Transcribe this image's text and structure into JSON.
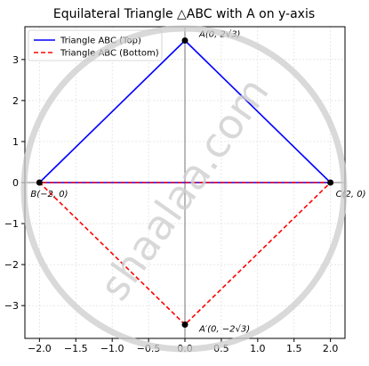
{
  "chart_data": {
    "type": "line",
    "title": "Equilateral Triangle △ABC with A on y-axis",
    "xlabel": "",
    "ylabel": "",
    "xlim": [
      -2.2,
      2.2
    ],
    "ylim": [
      -3.8,
      3.8
    ],
    "grid": true,
    "legend_position": "top-left",
    "x_ticks": [
      -2.0,
      -1.5,
      -1.0,
      -0.5,
      0.0,
      0.5,
      1.0,
      1.5,
      2.0
    ],
    "x_tick_labels": [
      "−2.0",
      "−1.5",
      "−1.0",
      "−0.5",
      "0.0",
      "0.5",
      "1.0",
      "1.5",
      "2.0"
    ],
    "y_ticks": [
      -3,
      -2,
      -1,
      0,
      1,
      2,
      3
    ],
    "y_tick_labels": [
      "−3",
      "−2",
      "−1",
      "0",
      "1",
      "2",
      "3"
    ],
    "series": [
      {
        "name": "Triangle ABC (Top)",
        "color": "#0000ff",
        "dash": "solid",
        "x": [
          0,
          -2,
          2,
          0
        ],
        "y": [
          3.464,
          0,
          0,
          3.464
        ]
      },
      {
        "name": "Triangle ABC (Bottom)",
        "color": "#ff0000",
        "dash": "dashed",
        "x": [
          0,
          -2,
          2,
          0
        ],
        "y": [
          -3.464,
          0,
          0,
          -3.464
        ]
      }
    ],
    "points": [
      {
        "label": "A(0, 2√3)",
        "x": 0,
        "y": 3.464
      },
      {
        "label": "B(−2, 0)",
        "x": -2,
        "y": 0
      },
      {
        "label": "C(2, 0)",
        "x": 2,
        "y": 0
      },
      {
        "label": "A′(0, −2√3)",
        "x": 0,
        "y": -3.464
      }
    ],
    "point_color": "#000000"
  },
  "watermark": {
    "text": "shaalaa.com",
    "color": "#cccccc"
  }
}
